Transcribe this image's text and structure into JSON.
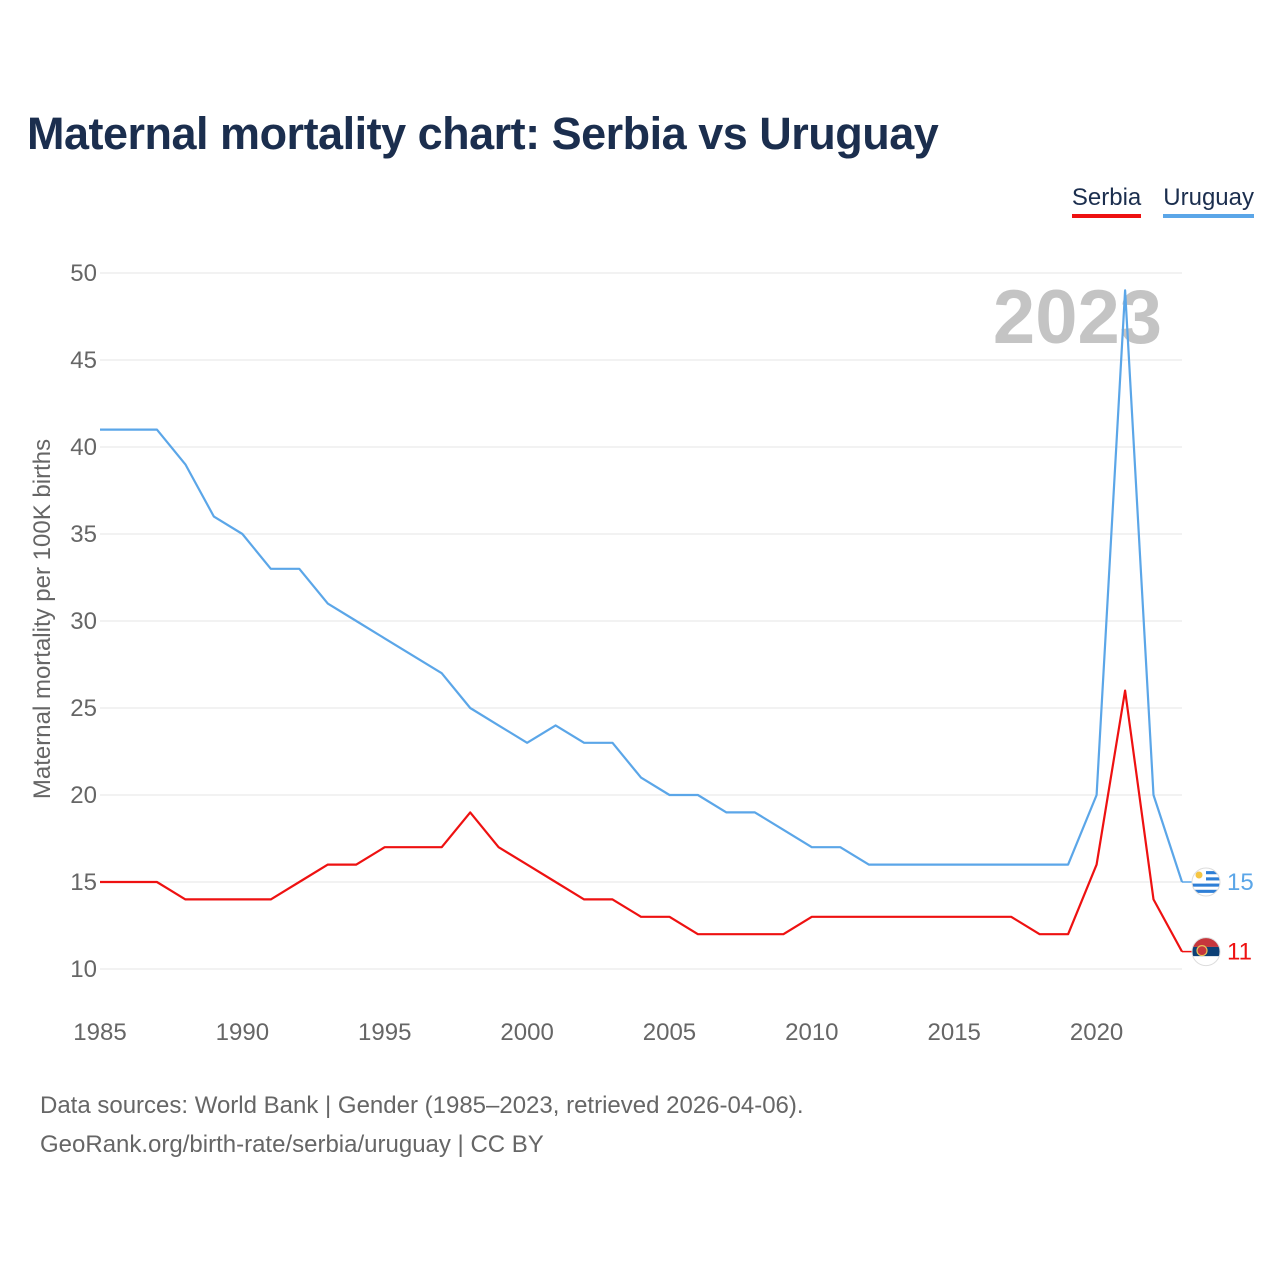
{
  "title": "Maternal mortality chart: Serbia vs Uruguay",
  "legend": [
    {
      "label": "Serbia",
      "color": "#ee1111"
    },
    {
      "label": "Uruguay",
      "color": "#5ba6e8"
    }
  ],
  "year_watermark": "2023",
  "source": {
    "line1": "Data sources: World Bank | Gender (1985–2023, retrieved 2026-04-06).",
    "line2": "GeoRank.org/birth-rate/serbia/uruguay | CC BY"
  },
  "chart_data": {
    "type": "line",
    "title": "Maternal mortality chart: Serbia vs Uruguay",
    "xlabel": "",
    "ylabel": "Maternal mortality per 100K births",
    "xlim": [
      1985,
      2023
    ],
    "ylim": [
      10,
      50
    ],
    "xticks": [
      1985,
      1990,
      1995,
      2000,
      2005,
      2010,
      2015,
      2020
    ],
    "yticks": [
      10,
      15,
      20,
      25,
      30,
      35,
      40,
      45,
      50
    ],
    "grid": true,
    "legend_position": "top-right",
    "x": [
      1985,
      1986,
      1987,
      1988,
      1989,
      1990,
      1991,
      1992,
      1993,
      1994,
      1995,
      1996,
      1997,
      1998,
      1999,
      2000,
      2001,
      2002,
      2003,
      2004,
      2005,
      2006,
      2007,
      2008,
      2009,
      2010,
      2011,
      2012,
      2013,
      2014,
      2015,
      2016,
      2017,
      2018,
      2019,
      2020,
      2021,
      2022,
      2023
    ],
    "series": [
      {
        "name": "Serbia",
        "color": "#ee1111",
        "end_label": "11",
        "values": [
          15,
          15,
          15,
          14,
          14,
          14,
          14,
          15,
          16,
          16,
          17,
          17,
          17,
          19,
          17,
          16,
          15,
          14,
          14,
          13,
          13,
          12,
          12,
          12,
          12,
          13,
          13,
          13,
          13,
          13,
          13,
          13,
          13,
          12,
          12,
          16,
          26,
          14,
          11
        ]
      },
      {
        "name": "Uruguay",
        "color": "#5ba6e8",
        "end_label": "15",
        "values": [
          41,
          41,
          41,
          39,
          36,
          35,
          33,
          33,
          31,
          30,
          29,
          28,
          27,
          25,
          24,
          23,
          24,
          23,
          23,
          21,
          20,
          20,
          19,
          19,
          18,
          17,
          17,
          16,
          16,
          16,
          16,
          16,
          16,
          16,
          16,
          20,
          49,
          20,
          15
        ]
      }
    ]
  }
}
